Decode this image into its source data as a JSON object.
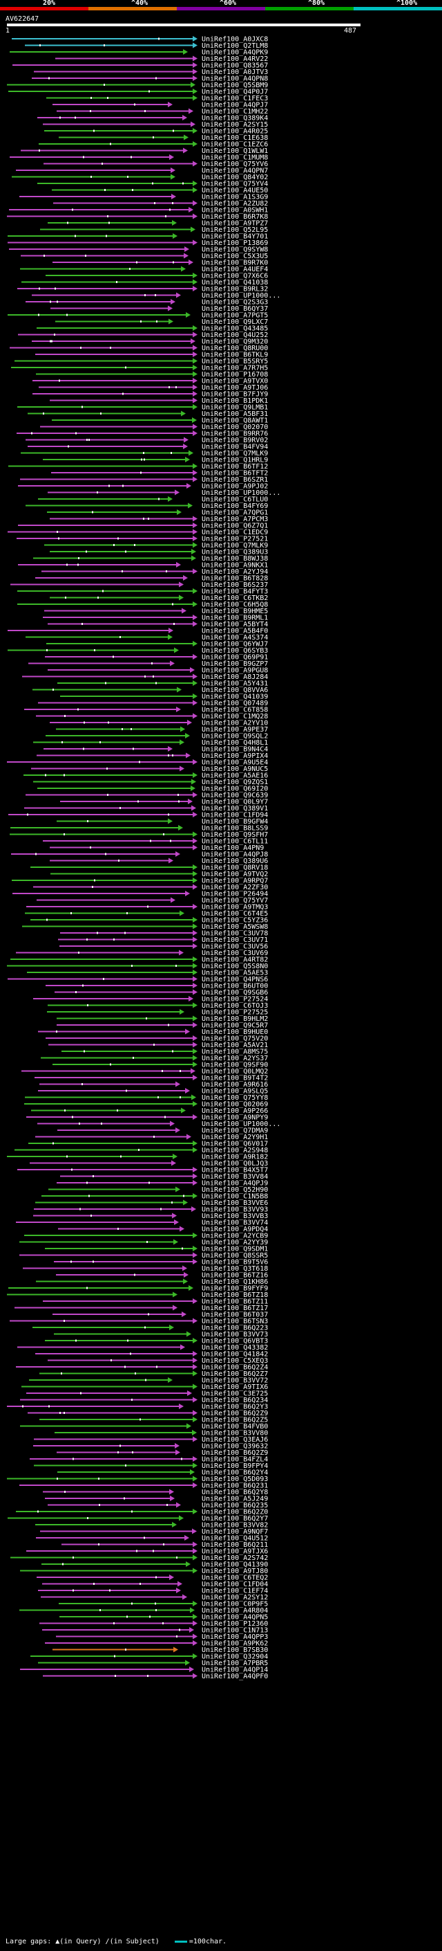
{
  "scale": {
    "labels": [
      "20%",
      "^40%",
      "^60%",
      "^80%",
      "^100%"
    ],
    "colors": [
      "#e00000",
      "#e07000",
      "#8000a0",
      "#00a000",
      "#00c0c0"
    ]
  },
  "query": {
    "id": "AV622647",
    "start": "1",
    "end": "487"
  },
  "hit_colors": {
    "green": "#3cb828",
    "magenta": "#c048c8",
    "orange": "#e07820",
    "cyan": "#3cc0d0"
  },
  "hits": [
    "UniRef100_A0JXC8",
    "UniRef100_Q2TLM8",
    "UniRef100_A4QPK9",
    "UniRef100_A4RV22",
    "UniRef100_Q83567",
    "UniRef100_A0JTV3",
    "UniRef100_A4QPN8",
    "UniRef100_Q5SBM9",
    "UniRef100_Q4P0J7",
    "UniRef100_C1FEC3",
    "UniRef100_A4QPJ7",
    "UniRef100_C1MH22",
    "UniRef100_Q389K4",
    "UniRef100_A2SY15",
    "UniRef100_A4R025",
    "UniRef100_C1E638",
    "UniRef100_C1EZC6",
    "UniRef100_Q1WLW1",
    "UniRef100_C1MUM8",
    "UniRef100_Q75YV6",
    "UniRef100_A4QPN7",
    "UniRef100_Q84Y02",
    "UniRef100_Q75YV4",
    "UniRef100_A4UE50",
    "UniRef100_A1S3G9",
    "UniRef100_A2ZU82",
    "UniRef100_A0SWH1",
    "UniRef100_B6R7K8",
    "UniRef100_A9TPZ7",
    "UniRef100_Q52L95",
    "UniRef100_B4Y701",
    "UniRef100_P13869",
    "UniRef100_Q9SYW8",
    "UniRef100_C5X3U5",
    "UniRef100_B9R7K0",
    "UniRef100_A4UEF4",
    "UniRef100_Q7X6C6",
    "UniRef100_Q41038",
    "UniRef100_B9RL32",
    "UniRef100_UP1000...",
    "UniRef100_Q2S3G3",
    "UniRef100_B6QY37",
    "UniRef100_A7PGT5",
    "UniRef100_Q9LXC7",
    "UniRef100_Q43485",
    "UniRef100_Q4U252",
    "UniRef100_Q9M320",
    "UniRef100_Q8RU00",
    "UniRef100_B6TKL9",
    "UniRef100_B5SRY5",
    "UniRef100_A7R7H5",
    "UniRef100_P16708",
    "UniRef100_A9TVX0",
    "UniRef100_A9TJ06",
    "UniRef100_B7FJY9",
    "UniRef100_B1PDK1",
    "UniRef100_Q9LMB1",
    "UniRef100_A5BF31",
    "UniRef100_Q8AWT1",
    "UniRef100_Q02070",
    "UniRef100_B9RR76",
    "UniRef100_B9RV02",
    "UniRef100_B4FV94",
    "UniRef100_Q7MLK9",
    "UniRef100_Q1HRL9",
    "UniRef100_B6TF12",
    "UniRef100_B6TFT2",
    "UniRef100_B6SZR1",
    "UniRef100_A9PJ02",
    "UniRef100_UP1000...",
    "UniRef100_C6TLU0",
    "UniRef100_B4FY69",
    "UniRef100_A7QPG1",
    "UniRef100_A7PCM3",
    "UniRef100_Q6Z7Q1",
    "UniRef100_C1EDC9",
    "UniRef100_P27521",
    "UniRef100_Q7MLK9",
    "UniRef100_Q389U3",
    "UniRef100_B8WJ38",
    "UniRef100_A9NKX1",
    "UniRef100_A2YJ94",
    "UniRef100_B6T828",
    "UniRef100_B6S237",
    "UniRef100_B4FYT3",
    "UniRef100_C6TKB2",
    "UniRef100_C6H5Q8",
    "UniRef100_B9HME5",
    "UniRef100_B9RML1",
    "UniRef100_A5BYT4",
    "UniRef100_A5B4F0",
    "UniRef100_A4S374",
    "UniRef100_Q6YWJ7",
    "UniRef100_Q6SYB3",
    "UniRef100_Q69P91",
    "UniRef100_B9GZP7",
    "UniRef100_A9PGU8",
    "UniRef100_A8J284",
    "UniRef100_A5Y431",
    "UniRef100_Q8VVA6",
    "UniRef100_Q41039",
    "UniRef100_Q07489",
    "UniRef100_C6T858",
    "UniRef100_C1MQ28",
    "UniRef100_A2YV10",
    "UniRef100_A9PE37",
    "UniRef100_Q9SQL2",
    "UniRef100_Q4H8L1",
    "UniRef100_B9N4C4",
    "UniRef100_A9PIX4",
    "UniRef100_A9U5E4",
    "UniRef100_A9NUC5",
    "UniRef100_A5AE16",
    "UniRef100_Q9ZQS1",
    "UniRef100_Q69I20",
    "UniRef100_Q9C639",
    "UniRef100_Q0L9Y7",
    "UniRef100_Q389V1",
    "UniRef100_C1FD94",
    "UniRef100_B9GFW4",
    "UniRef100_B8LSS9",
    "UniRef100_Q9SFH7",
    "UniRef100_C6TL11",
    "UniRef100_A4PN9",
    "UniRef100_A4QPJ8",
    "UniRef100_Q389U6",
    "UniRef100_Q8RV18",
    "UniRef100_A9TVQ2",
    "UniRef100_A9RPQ7",
    "UniRef100_A2ZF30",
    "UniRef100_P26494",
    "UniRef100_Q75YV7",
    "UniRef100_A9TMQ3",
    "UniRef100_C6T4E5",
    "UniRef100_C5YZ36",
    "UniRef100_A5WSW8",
    "UniRef100_C3UV78",
    "UniRef100_C3UV71",
    "UniRef100_C3UV56",
    "UniRef100_C3UV69",
    "UniRef100_A4RT82",
    "UniRef100_Q5S8N0",
    "UniRef100_A5AE53",
    "UniRef100_Q4PNS6",
    "UniRef100_B6UT00",
    "UniRef100_Q9SGB6",
    "UniRef100_P27524",
    "UniRef100_C6TOJ3",
    "UniRef100_P27525",
    "UniRef100_B9HLM2",
    "UniRef100_Q9C5R7",
    "UniRef100_B9HUE0",
    "UniRef100_Q75V20",
    "UniRef100_A5AV21",
    "UniRef100_A8MS75",
    "UniRef100_A2YS37",
    "UniRef100_Q9SF90",
    "UniRef100_Q0LMQ2",
    "UniRef100_B9T4T2",
    "UniRef100_A9R616",
    "UniRef100_A9SLQ5",
    "UniRef100_Q75YY8",
    "UniRef100_Q02069",
    "UniRef100_A9P266",
    "UniRef100_A9NPY9",
    "UniRef100_UP1000...",
    "UniRef100_Q7DMA9",
    "UniRef100_A2Y9H1",
    "UniRef100_Q6V017",
    "UniRef100_A2S948",
    "UniRef100_A9R182",
    "UniRef100_Q0LJQ3",
    "UniRef100_B4X5T7",
    "UniRef100_B3VV84",
    "UniRef100_A4QPJ9",
    "UniRef100_Q52H90",
    "UniRef100_C1N5B8",
    "UniRef100_B3VVE6",
    "UniRef100_B3VV93",
    "UniRef100_B3VVB3",
    "UniRef100_B3VV74",
    "UniRef100_A9PDQ4",
    "UniRef100_A2YCB9",
    "UniRef100_A2YY39",
    "UniRef100_Q9SDM1",
    "UniRef100_Q8SSR5",
    "UniRef100_B9T5V6",
    "UniRef100_Q3T618",
    "UniRef100_B6TZ16",
    "UniRef100_Q1KH86",
    "UniRef100_B9FYF9",
    "UniRef100_B6TZ18",
    "UniRef100_B6TZ11",
    "UniRef100_B6TZ17",
    "UniRef100_B6T037",
    "UniRef100_B6TSN3",
    "UniRef100_B6Q223",
    "UniRef100_B3VV73",
    "UniRef100_Q6VBT3",
    "UniRef100_Q43382",
    "UniRef100_Q41842",
    "UniRef100_C5XEQ3",
    "UniRef100_B6Q2Z4",
    "UniRef100_B6Q2Z7",
    "UniRef100_B3VV72",
    "UniRef100_A9TIX6",
    "UniRef100_C3E725",
    "UniRef100_B6Q234",
    "UniRef100_B6Q2Y3",
    "UniRef100_B6Q2Z9",
    "UniRef100_B6Q2Z5",
    "UniRef100_B4FVB0",
    "UniRef100_B3VV80",
    "UniRef100_Q3EAJ6",
    "UniRef100_Q39632",
    "UniRef100_B6Q2Z9",
    "UniRef100_B4FZL4",
    "UniRef100_B9FPY4",
    "UniRef100_B6Q2Y4",
    "UniRef100_Q5D093",
    "UniRef100_B6Q231",
    "UniRef100_B6Q2Y8",
    "UniRef100_A5J249",
    "UniRef100_B6Q235",
    "UniRef100_B6Q2Z0",
    "UniRef100_B6Q2Y7",
    "UniRef100_B3VV82",
    "UniRef100_A9NQF7",
    "UniRef100_Q4U512",
    "UniRef100_B6Q211",
    "UniRef100_A9TJX6",
    "UniRef100_A2S742",
    "UniRef100_Q41390",
    "UniRef100_A9TJ80",
    "UniRef100_C6TEQ2",
    "UniRef100_C1FD04",
    "UniRef100_C1EF74",
    "UniRef100_A2SY12",
    "UniRef100_C0P9F5",
    "UniRef100_A4R804",
    "UniRef100_A4QPN5",
    "UniRef100_P12360",
    "UniRef100_C1N713",
    "UniRef100_A4QPP3",
    "UniRef100_A9PK62",
    "UniRef100_B7SB30",
    "UniRef100_Q32904",
    "UniRef100_A7PBR5",
    "UniRef100_A4QP14",
    "UniRef100_A4QPF0"
  ],
  "legend": {
    "large_gaps_label": "Large gaps:",
    "query_gap_text": "(in Query)",
    "subject_gap_text": "(in Subject)",
    "scale_text": "=100char."
  }
}
